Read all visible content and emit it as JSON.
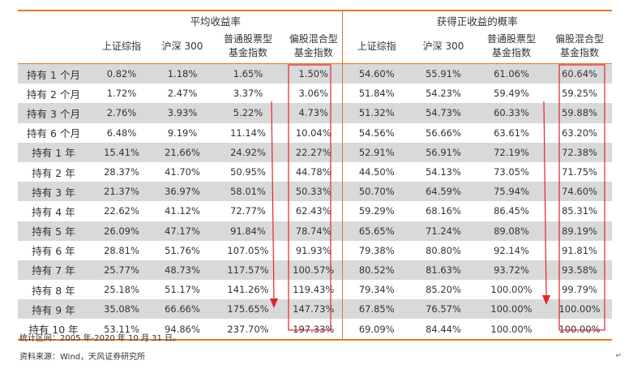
{
  "header": {
    "group_avg": "平均收益率",
    "group_prob": "获得正收益的概率",
    "columns": [
      {
        "label": "上证综指",
        "label2": ""
      },
      {
        "label": "沪深 300",
        "label2": ""
      },
      {
        "label": "普通股票型",
        "label2": "基金指数"
      },
      {
        "label": "偏股混合型",
        "label2": "基金指数"
      },
      {
        "label": "上证综指",
        "label2": ""
      },
      {
        "label": "沪深 300",
        "label2": ""
      },
      {
        "label": "普通股票型",
        "label2": "基金指数"
      },
      {
        "label": "偏股混合型",
        "label2": "基金指数"
      }
    ]
  },
  "rows": [
    {
      "label": "持有 1 个月",
      "shaded": true,
      "values": [
        "0.82%",
        "1.18%",
        "1.65%",
        "1.50%",
        "54.60%",
        "55.91%",
        "61.06%",
        "60.64%"
      ]
    },
    {
      "label": "持有 2 个月",
      "shaded": false,
      "values": [
        "1.72%",
        "2.47%",
        "3.37%",
        "3.06%",
        "51.84%",
        "54.23%",
        "59.49%",
        "59.25%"
      ]
    },
    {
      "label": "持有 3 个月",
      "shaded": true,
      "values": [
        "2.76%",
        "3.93%",
        "5.22%",
        "4.73%",
        "51.32%",
        "54.73%",
        "60.33%",
        "59.88%"
      ]
    },
    {
      "label": "持有 6 个月",
      "shaded": false,
      "values": [
        "6.48%",
        "9.19%",
        "11.14%",
        "10.04%",
        "54.56%",
        "56.66%",
        "63.61%",
        "63.20%"
      ]
    },
    {
      "label": "持有 1 年",
      "shaded": true,
      "values": [
        "15.41%",
        "21.66%",
        "24.92%",
        "22.27%",
        "52.91%",
        "56.91%",
        "72.19%",
        "72.38%"
      ]
    },
    {
      "label": "持有 2 年",
      "shaded": false,
      "values": [
        "28.37%",
        "41.70%",
        "50.95%",
        "44.78%",
        "44.50%",
        "54.13%",
        "73.05%",
        "71.75%"
      ]
    },
    {
      "label": "持有 3 年",
      "shaded": true,
      "values": [
        "21.37%",
        "36.97%",
        "58.01%",
        "50.33%",
        "50.70%",
        "64.59%",
        "75.94%",
        "74.60%"
      ]
    },
    {
      "label": "持有 4 年",
      "shaded": false,
      "values": [
        "22.62%",
        "41.12%",
        "72.77%",
        "62.43%",
        "59.29%",
        "68.16%",
        "86.45%",
        "85.31%"
      ]
    },
    {
      "label": "持有 5 年",
      "shaded": true,
      "values": [
        "26.09%",
        "47.17%",
        "91.84%",
        "78.74%",
        "65.65%",
        "71.24%",
        "89.08%",
        "89.19%"
      ]
    },
    {
      "label": "持有 6 年",
      "shaded": false,
      "values": [
        "28.81%",
        "51.76%",
        "107.05%",
        "91.93%",
        "79.38%",
        "80.80%",
        "92.14%",
        "91.81%"
      ]
    },
    {
      "label": "持有 7 年",
      "shaded": true,
      "values": [
        "25.77%",
        "48.73%",
        "117.57%",
        "100.57%",
        "80.52%",
        "81.63%",
        "93.72%",
        "93.58%"
      ]
    },
    {
      "label": "持有 8 年",
      "shaded": false,
      "values": [
        "25.18%",
        "51.17%",
        "141.26%",
        "119.43%",
        "79.34%",
        "85.20%",
        "100.00%",
        "99.79%"
      ]
    },
    {
      "label": "持有 9 年",
      "shaded": true,
      "values": [
        "35.08%",
        "66.66%",
        "175.65%",
        "147.73%",
        "67.85%",
        "76.57%",
        "100.00%",
        "100.00%"
      ]
    },
    {
      "label": "持有 10 年",
      "shaded": false,
      "values": [
        "53.11%",
        "94.86%",
        "237.70%",
        "197.33%",
        "69.09%",
        "84.44%",
        "100.00%",
        "100.00%"
      ]
    }
  ],
  "notes": {
    "period": "统计区间：2005 年-2020 年 10 月 31 日。",
    "source": "资料来源：Wind，天风证券研究所"
  },
  "mark": "↵",
  "colors": {
    "accent": "#e87722",
    "shade": "#d9d9d9",
    "annotation": "#e3242b"
  }
}
